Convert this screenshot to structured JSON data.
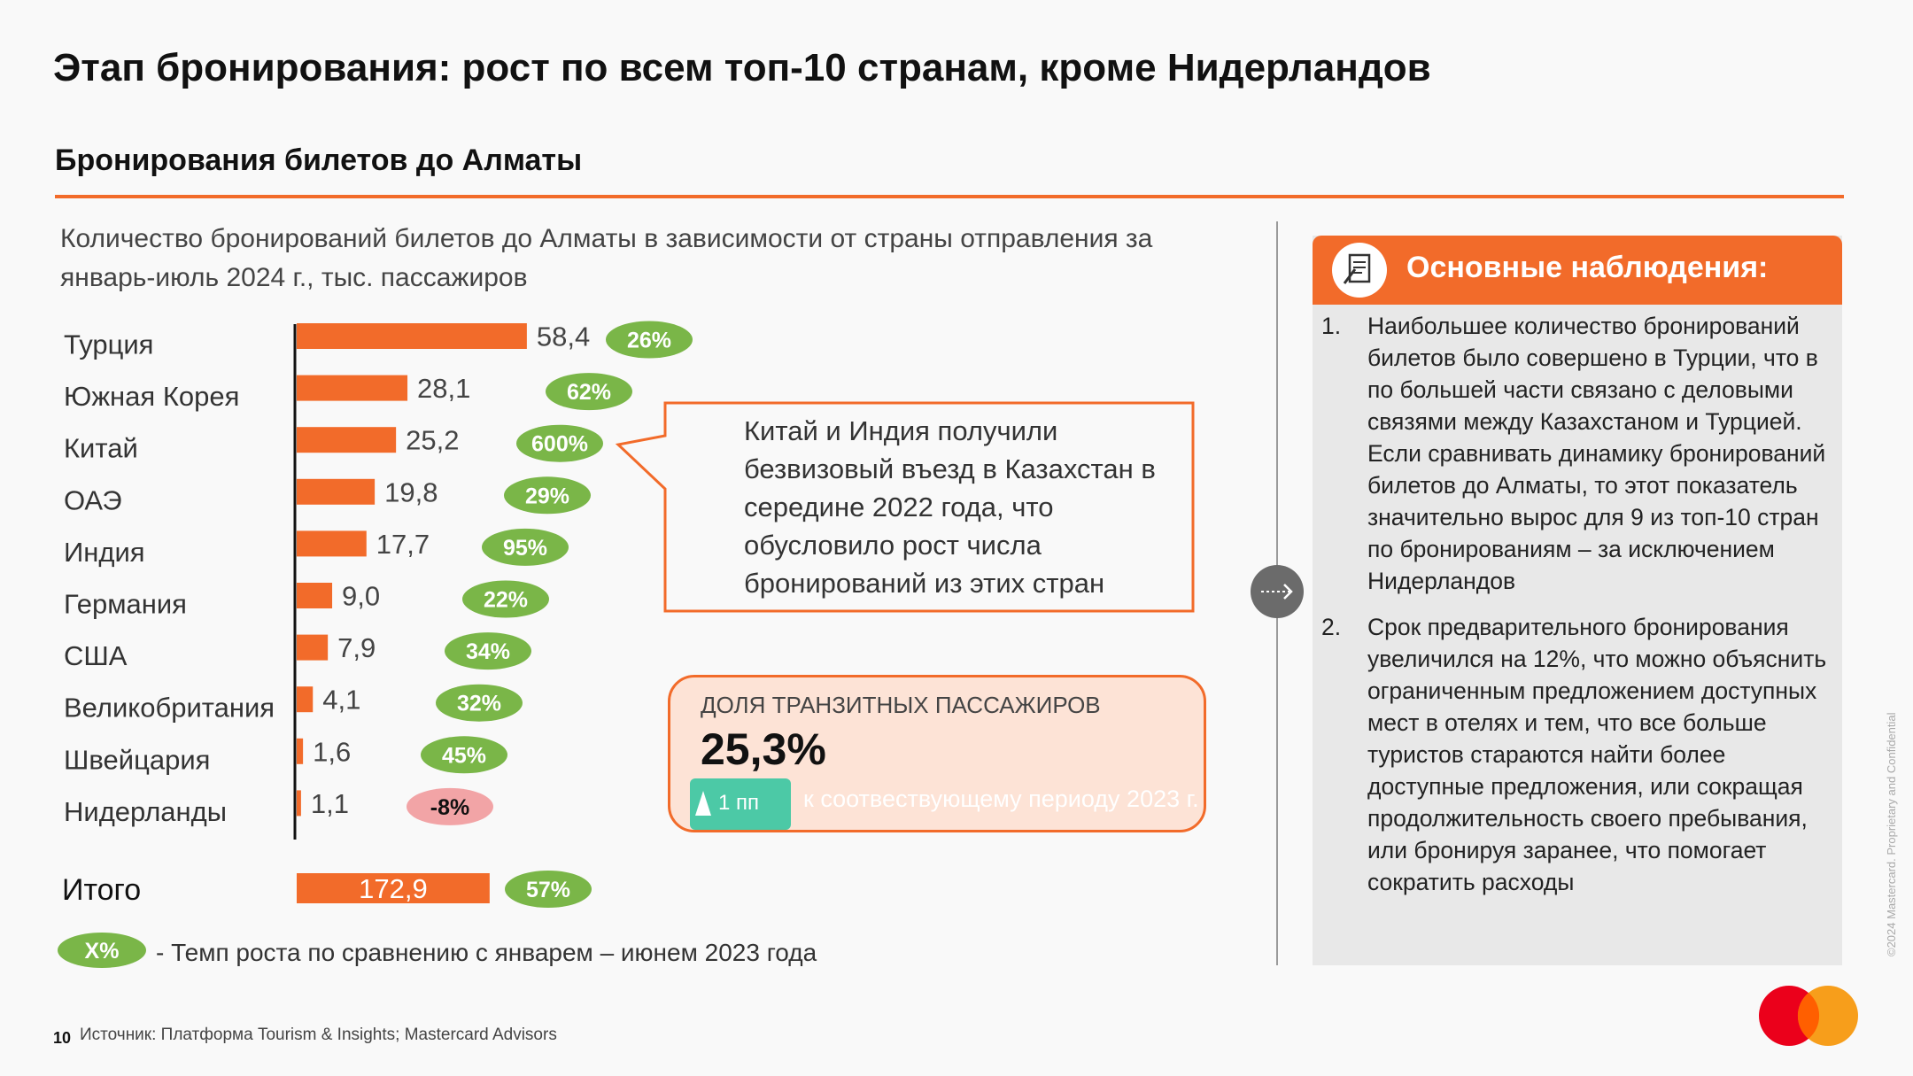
{
  "page_title": "Этап бронирования: рост по всем топ-10 странам, кроме Нидерландов",
  "section_title": "Бронирования билетов до Алматы",
  "chart_subtitle": "Количество бронирований билетов до Алматы в зависимости от страны отправления за январь-июль 2024 г., тыс. пассажиров",
  "colors": {
    "accent": "#f26b2a",
    "growth_badge": "#7ab648",
    "decline_badge": "#f2a4a6",
    "teal": "#4cc9a6",
    "panel_bg": "#e8e8e8"
  },
  "chart_data": {
    "type": "bar",
    "orientation": "horizontal",
    "title": "Количество бронирований билетов до Алматы в зависимости от страны отправления за январь-июль 2024 г., тыс. пассажиров",
    "categories": [
      "Турция",
      "Южная Корея",
      "Китай",
      "ОАЭ",
      "Индия",
      "Германия",
      "США",
      "Великобритания",
      "Швейцария",
      "Нидерланды"
    ],
    "values": [
      58.4,
      28.1,
      25.2,
      19.8,
      17.7,
      9.0,
      7.9,
      4.1,
      1.6,
      1.1
    ],
    "value_labels": [
      "58,4",
      "28,1",
      "25,2",
      "19,8",
      "17,7",
      "9,0",
      "7,9",
      "4,1",
      "1,6",
      "1,1"
    ],
    "growth": [
      26,
      62,
      600,
      29,
      95,
      22,
      34,
      32,
      45,
      -8
    ],
    "growth_labels": [
      "26%",
      "62%",
      "600%",
      "29%",
      "95%",
      "22%",
      "34%",
      "32%",
      "45%",
      "-8%"
    ],
    "total": {
      "label": "Итого",
      "value": 172.9,
      "value_label": "172,9",
      "growth": 57,
      "growth_label": "57%"
    },
    "legend": {
      "badge": "X%",
      "text": "- Темп роста по сравнению с январем – июнем 2023 года"
    },
    "grid": false
  },
  "callout": {
    "text": "Китай и Индия получили безвизовый въезд в Казахстан в середине 2022 года, что обусловило рост числа бронирований из этих стран"
  },
  "transit": {
    "label": "ДОЛЯ ТРАНЗИТНЫХ ПАССАЖИРОВ",
    "value": "25,3%",
    "change": "1 пп",
    "comparison": "к соотвествующему периоду 2023 г."
  },
  "observations": {
    "title": "Основные наблюдения:",
    "icon": "document-pen-icon",
    "items": [
      {
        "num": "1.",
        "text": "Наибольшее количество бронирований билетов было совершено в Турции, что в по большей части связано с деловыми связями между Казахстаном и Турцией. Если сравнивать динамику бронирований билетов до Алматы, то этот показатель значительно вырос для 9 из топ-10 стран по бронированиям – за исключением Нидерландов"
      },
      {
        "num": "2.",
        "text": "Срок предварительного бронирования увеличился на 12%, что можно объяснить ограниченным предложением доступных мест в отелях и тем, что все больше туристов стараются найти более доступные предложения, или сокращая продолжительность своего пребывания, или бронируя заранее, что помогает сократить расходы"
      }
    ]
  },
  "arrow_icon": "dotted-arrow-right-icon",
  "copyright": "©2024 Mastercard. Proprietary and Confidential",
  "logo": "mastercard-logo",
  "footer": {
    "page_number": "10",
    "source": "Источник: Платформа Tourism & Insights; Mastercard Advisors"
  }
}
